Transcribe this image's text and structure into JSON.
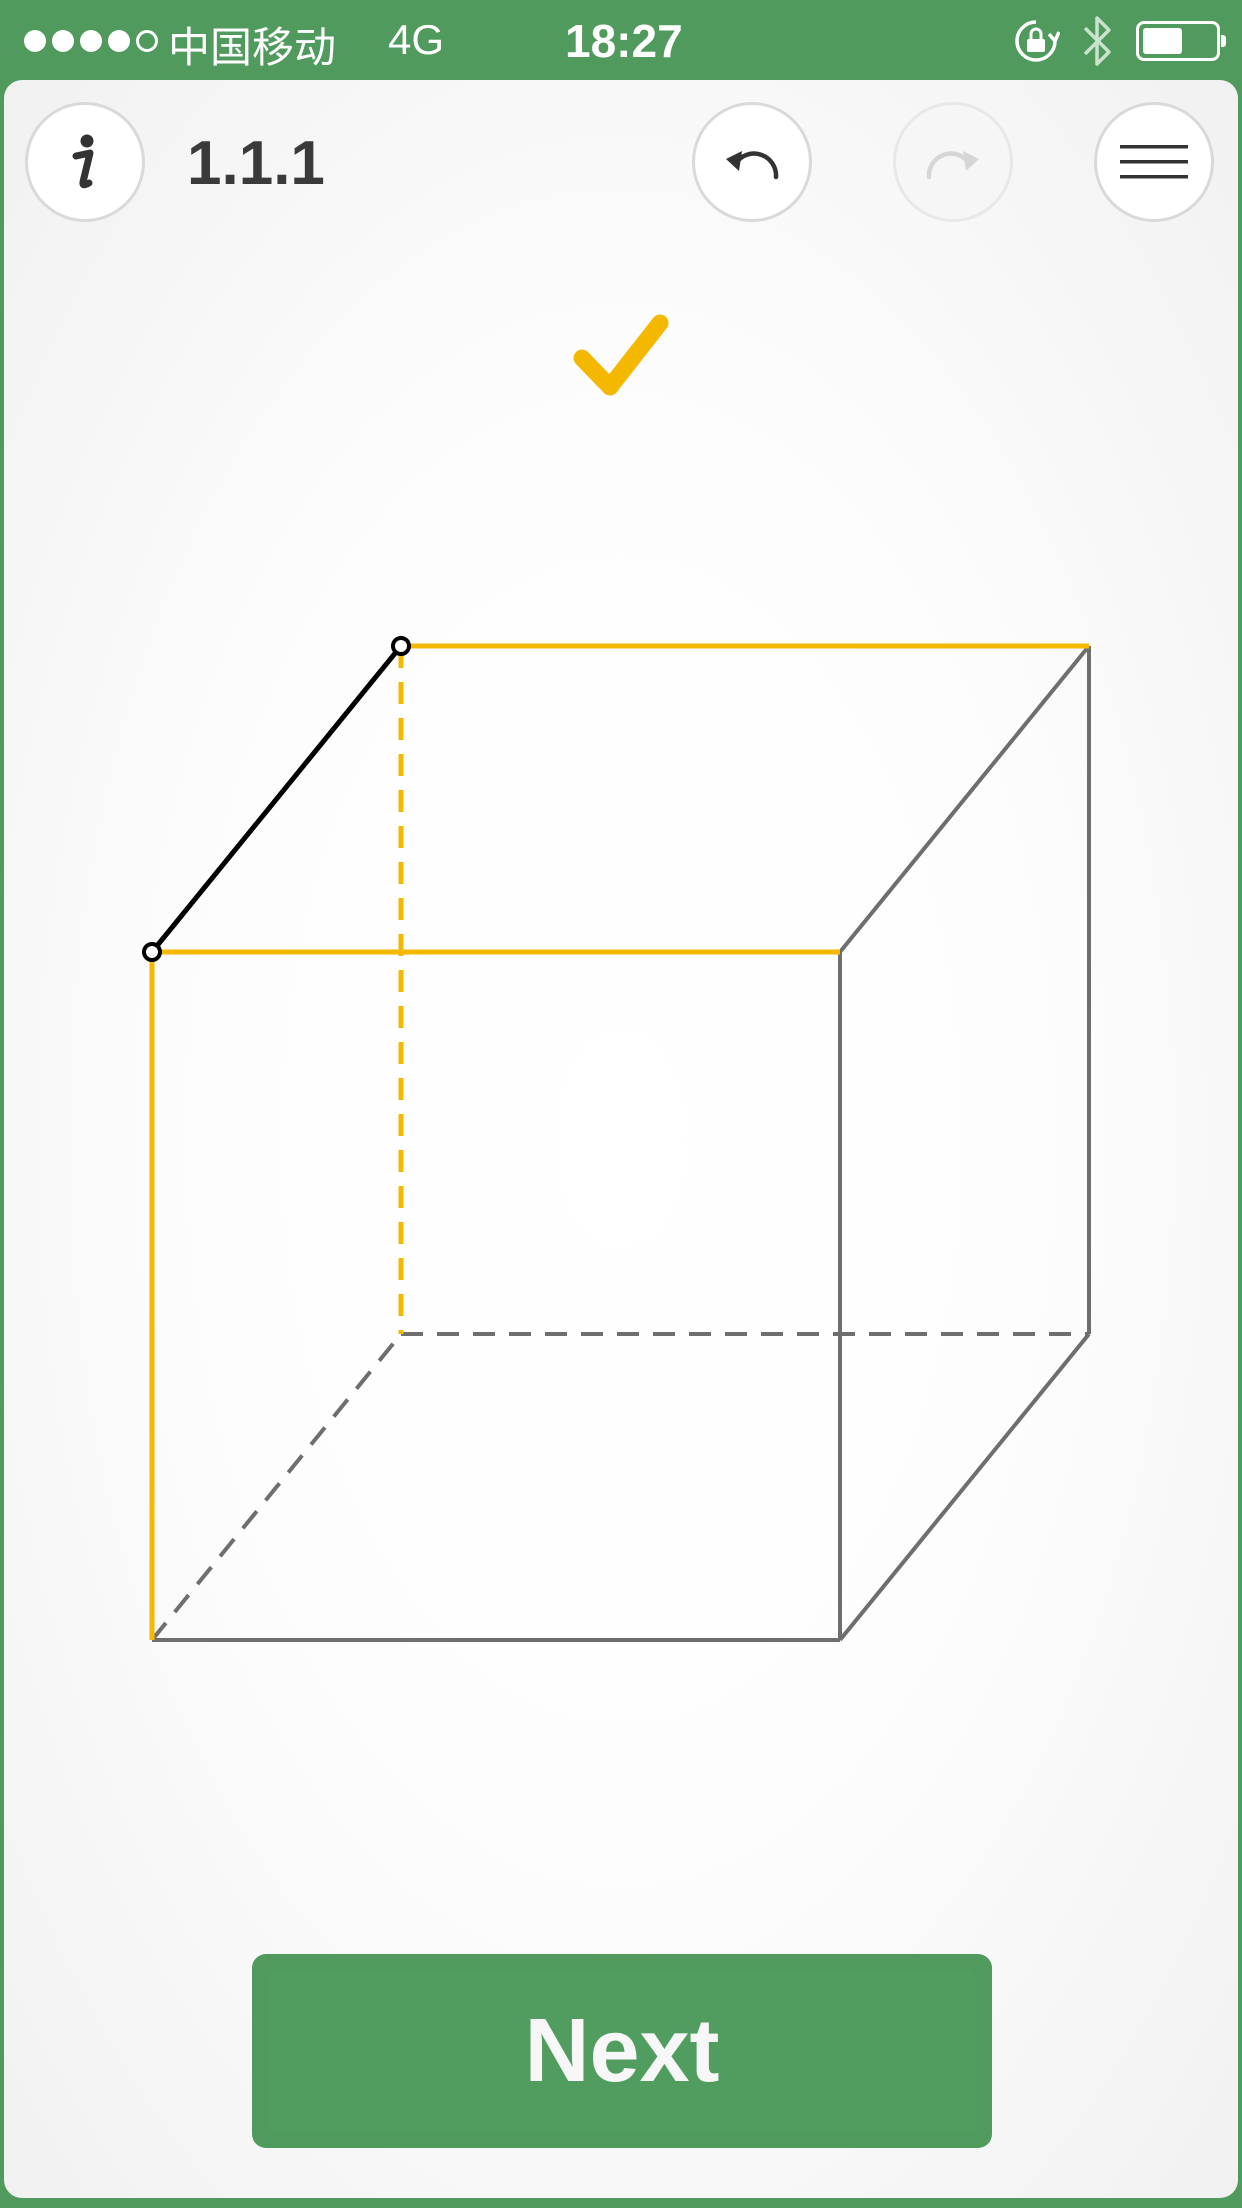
{
  "status_bar": {
    "carrier": "中国移动",
    "network": "4G",
    "time": "18:27",
    "signal_bars": 4,
    "signal_total": 5,
    "battery_level": 0.55,
    "icons": [
      "rotation-lock-icon",
      "bluetooth-icon",
      "battery-icon"
    ]
  },
  "toolbar": {
    "info_icon": "info-icon",
    "level": "1.1.1",
    "undo_icon": "undo-icon",
    "redo_icon": "redo-icon",
    "redo_enabled": false,
    "menu_icon": "menu-icon"
  },
  "status": {
    "solved": true,
    "icon": "checkmark-icon"
  },
  "puzzle": {
    "type": "cube-edge-tracing",
    "colors": {
      "highlight": "#f5b800",
      "edge": "#6e6e6e",
      "active_edge": "#000000"
    },
    "vertices": {
      "A": "front-top-left",
      "B": "front-top-right",
      "C": "front-bottom-left",
      "D": "front-bottom-right",
      "E": "back-top-left",
      "F": "back-top-right",
      "G": "back-bottom-left",
      "H": "back-bottom-right"
    },
    "edges": [
      {
        "id": "AB",
        "from": "A",
        "to": "B",
        "style": "highlight",
        "hidden": false
      },
      {
        "id": "AC",
        "from": "A",
        "to": "C",
        "style": "highlight",
        "hidden": false
      },
      {
        "id": "EF",
        "from": "E",
        "to": "F",
        "style": "highlight",
        "hidden": false
      },
      {
        "id": "EG",
        "from": "E",
        "to": "G",
        "style": "highlight",
        "hidden": true
      },
      {
        "id": "AE",
        "from": "A",
        "to": "E",
        "style": "active",
        "hidden": false
      },
      {
        "id": "BD",
        "from": "B",
        "to": "D",
        "style": "normal",
        "hidden": false
      },
      {
        "id": "CD",
        "from": "C",
        "to": "D",
        "style": "normal",
        "hidden": false
      },
      {
        "id": "BF",
        "from": "B",
        "to": "F",
        "style": "normal",
        "hidden": false
      },
      {
        "id": "FH",
        "from": "F",
        "to": "H",
        "style": "normal",
        "hidden": false
      },
      {
        "id": "DH",
        "from": "D",
        "to": "H",
        "style": "normal",
        "hidden": false
      },
      {
        "id": "GH",
        "from": "G",
        "to": "H",
        "style": "normal",
        "hidden": true
      },
      {
        "id": "CG",
        "from": "C",
        "to": "G",
        "style": "normal",
        "hidden": true
      }
    ],
    "endpoint_markers": [
      "A",
      "E"
    ]
  },
  "next_button": {
    "label": "Next",
    "color": "#4f9a5c"
  }
}
